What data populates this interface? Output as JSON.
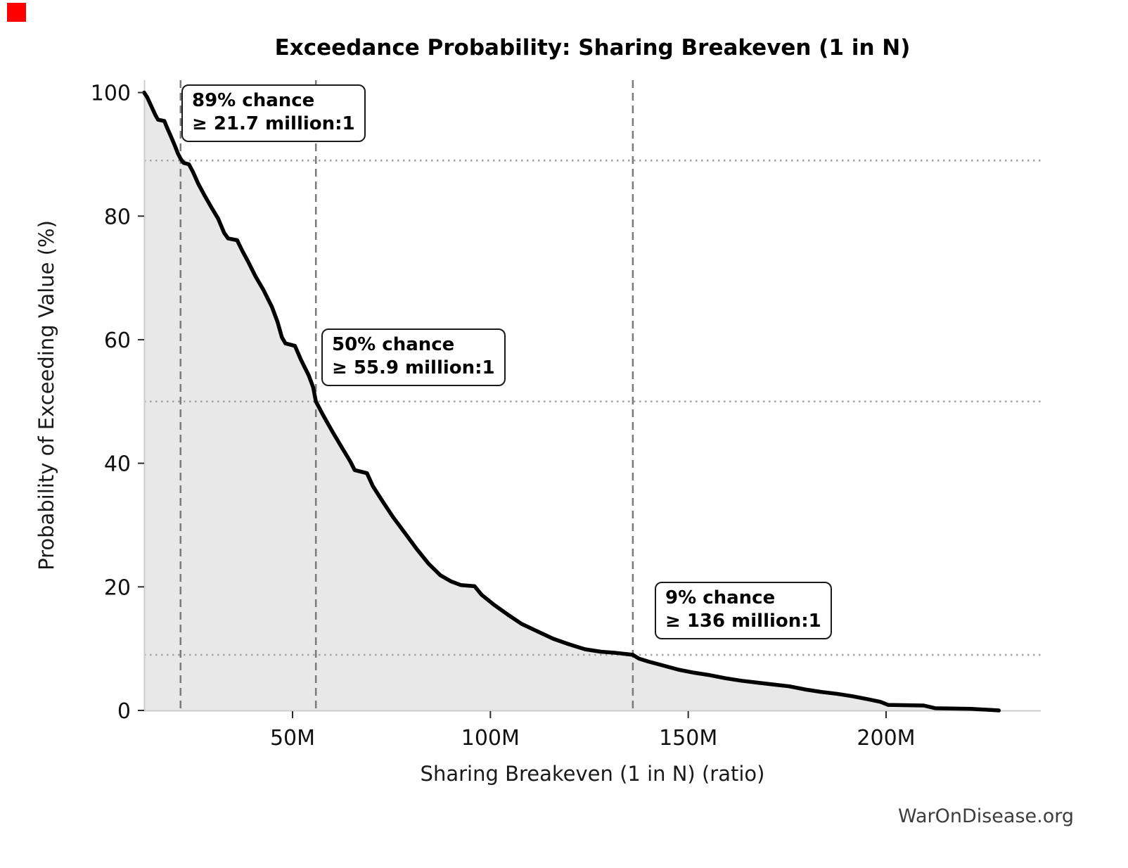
{
  "marker": {
    "color": "#ff0000"
  },
  "title": "Exceedance Probability: Sharing Breakeven (1 in N)",
  "watermark": "WarOnDisease.org",
  "chart_data": {
    "type": "line",
    "title": "Exceedance Probability: Sharing Breakeven (1 in N)",
    "xlabel": "Sharing Breakeven (1 in N) (ratio)",
    "ylabel": "Probability of Exceeding Value (%)",
    "x_unit": "million:1 ratio (M = millions)",
    "xlim": [
      12.5,
      239.1
    ],
    "ylim": [
      0,
      102
    ],
    "grid": false,
    "legend": "none",
    "xticks": [
      {
        "value": 50,
        "label": "50M"
      },
      {
        "value": 100,
        "label": "100M"
      },
      {
        "value": 150,
        "label": "150M"
      },
      {
        "value": 200,
        "label": "200M"
      }
    ],
    "yticks": [
      {
        "value": 0,
        "label": "0"
      },
      {
        "value": 20,
        "label": "20"
      },
      {
        "value": 40,
        "label": "40"
      },
      {
        "value": 60,
        "label": "60"
      },
      {
        "value": 80,
        "label": "80"
      },
      {
        "value": 100,
        "label": "100"
      }
    ],
    "series": [
      {
        "name": "Exceedance probability",
        "color": "#000000",
        "fill_color": "#e8e8e8",
        "points_x_millions_y_pct": [
          [
            12.5,
            100
          ],
          [
            13.3,
            99.2
          ],
          [
            14.3,
            97.8
          ],
          [
            15.3,
            96.4
          ],
          [
            16.0,
            95.6
          ],
          [
            17.6,
            95.4
          ],
          [
            18.3,
            94.3
          ],
          [
            19.2,
            93.0
          ],
          [
            20.2,
            91.5
          ],
          [
            21.0,
            90.2
          ],
          [
            21.7,
            89.3
          ],
          [
            22.5,
            88.6
          ],
          [
            23.8,
            88.4
          ],
          [
            24.8,
            87.2
          ],
          [
            26.2,
            85.2
          ],
          [
            27.8,
            83.3
          ],
          [
            29.5,
            81.4
          ],
          [
            31.2,
            79.6
          ],
          [
            32.7,
            77.3
          ],
          [
            33.7,
            76.4
          ],
          [
            36.0,
            76.1
          ],
          [
            37.3,
            74.4
          ],
          [
            38.8,
            72.6
          ],
          [
            40.6,
            70.3
          ],
          [
            42.6,
            68.1
          ],
          [
            44.8,
            65.3
          ],
          [
            46.2,
            62.9
          ],
          [
            47.3,
            60.4
          ],
          [
            48.2,
            59.4
          ],
          [
            50.6,
            59.0
          ],
          [
            52.1,
            56.8
          ],
          [
            54.1,
            54.2
          ],
          [
            55.2,
            52.3
          ],
          [
            55.9,
            50.0
          ],
          [
            57.8,
            47.7
          ],
          [
            60.1,
            45.1
          ],
          [
            62.6,
            42.4
          ],
          [
            64.6,
            40.3
          ],
          [
            65.7,
            38.9
          ],
          [
            68.8,
            38.4
          ],
          [
            70.3,
            36.3
          ],
          [
            72.8,
            33.8
          ],
          [
            75.4,
            31.3
          ],
          [
            78.3,
            28.8
          ],
          [
            81.3,
            26.2
          ],
          [
            84.3,
            23.8
          ],
          [
            87.3,
            21.9
          ],
          [
            90.0,
            20.9
          ],
          [
            92.5,
            20.3
          ],
          [
            96.0,
            20.1
          ],
          [
            97.8,
            18.7
          ],
          [
            100.9,
            17.1
          ],
          [
            104.4,
            15.5
          ],
          [
            107.9,
            14.0
          ],
          [
            111.9,
            12.8
          ],
          [
            115.9,
            11.6
          ],
          [
            119.9,
            10.7
          ],
          [
            123.9,
            9.9
          ],
          [
            127.9,
            9.5
          ],
          [
            131.9,
            9.3
          ],
          [
            136.0,
            9.0
          ],
          [
            137.5,
            8.4
          ],
          [
            140.0,
            7.9
          ],
          [
            143.5,
            7.3
          ],
          [
            147.5,
            6.6
          ],
          [
            151.5,
            6.1
          ],
          [
            155.5,
            5.7
          ],
          [
            159.5,
            5.2
          ],
          [
            163.5,
            4.8
          ],
          [
            167.5,
            4.5
          ],
          [
            171.5,
            4.2
          ],
          [
            175.5,
            3.9
          ],
          [
            179.5,
            3.4
          ],
          [
            183.5,
            3.0
          ],
          [
            187.5,
            2.7
          ],
          [
            191.5,
            2.3
          ],
          [
            195.5,
            1.8
          ],
          [
            198.5,
            1.4
          ],
          [
            200.5,
            0.9
          ],
          [
            209.5,
            0.8
          ],
          [
            212.5,
            0.35
          ],
          [
            221.5,
            0.25
          ],
          [
            227.5,
            0.05
          ],
          [
            228.5,
            0.0
          ]
        ]
      }
    ],
    "reference_lines": {
      "vertical_dashed_x_millions": [
        21.7,
        55.9,
        136
      ],
      "horizontal_dotted_y_pct": [
        89,
        50,
        9
      ],
      "vline_color": "#7a7a7a",
      "hline_color": "#a3a3a3"
    },
    "annotations": [
      {
        "line1": "89% chance",
        "line2": "≥ 21.7 million:1",
        "anchor_x_millions": 22.0,
        "anchor_y_pct": 101.3
      },
      {
        "line1": "50% chance",
        "line2": "≥ 55.9 million:1",
        "anchor_x_millions": 57.2,
        "anchor_y_pct": 61.8
      },
      {
        "line1": "9% chance",
        "line2": "≥ 136 million:1",
        "anchor_x_millions": 141.6,
        "anchor_y_pct": 20.8
      }
    ],
    "key_readings": [
      {
        "probability_pct": 89,
        "breakeven_at_least": "21.7 million:1"
      },
      {
        "probability_pct": 50,
        "breakeven_at_least": "55.9 million:1"
      },
      {
        "probability_pct": 9,
        "breakeven_at_least": "136 million:1"
      }
    ],
    "axis_style": {
      "spine_color": "#cccccc",
      "tick_color": "#2b2b2b",
      "tick_label_color": "#111111"
    }
  }
}
